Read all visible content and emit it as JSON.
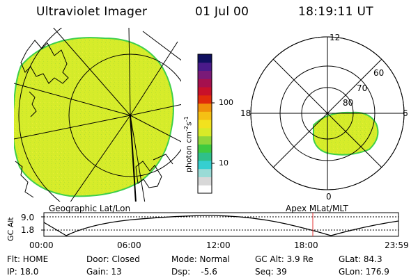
{
  "header": {
    "title": "Ultraviolet Imager",
    "date": "01 Jul 00",
    "time": "18:19:11 UT"
  },
  "geo_panel": {
    "label": "Geographic Lat/Lon"
  },
  "polar_panel": {
    "label": "Apex MLat/MLT",
    "mlt_labels": {
      "top": "12",
      "right": "6",
      "bottom": "0",
      "left": "18"
    },
    "lat_labels": [
      "60",
      "70",
      "80"
    ]
  },
  "colorbar": {
    "unit_label": "photon cm-2s-1",
    "ticks": [
      "100",
      "10"
    ],
    "scale": "log",
    "colors": [
      "#ffffff",
      "#d8d8d8",
      "#9adbd6",
      "#36cfd0",
      "#2fc08a",
      "#3fca3f",
      "#8fd63a",
      "#d8ea28",
      "#f2e21e",
      "#f5c014",
      "#f0900a",
      "#e02c0b",
      "#c8102a",
      "#a5104e",
      "#7a1a78",
      "#4a1a8a",
      "#101060"
    ]
  },
  "altitude_plot": {
    "axis_label": "GC Alt",
    "y_ticks": [
      "9.0",
      "1.8"
    ],
    "x_ticks": [
      "00:00",
      "06:00",
      "12:00",
      "18:00",
      "23:59"
    ],
    "marker_time": "18:19",
    "marker_color": "#e03030"
  },
  "info": {
    "row1": {
      "flt": "Flt: HOME",
      "door": "Door: Closed",
      "mode": "Mode: Normal",
      "gc_alt": "GC Alt: 3.9 Re",
      "glat": "GLat:  84.3"
    },
    "row2": {
      "ip": "IP: 18.0",
      "gain": "Gain: 13",
      "dsp": "Dsp:    -5.6",
      "seq": "Seq: 39",
      "glon": "GLon: 176.9"
    }
  },
  "colors": {
    "aurora_fill": "#d6ec2a",
    "aurora_edge": "#3ecf4a"
  }
}
